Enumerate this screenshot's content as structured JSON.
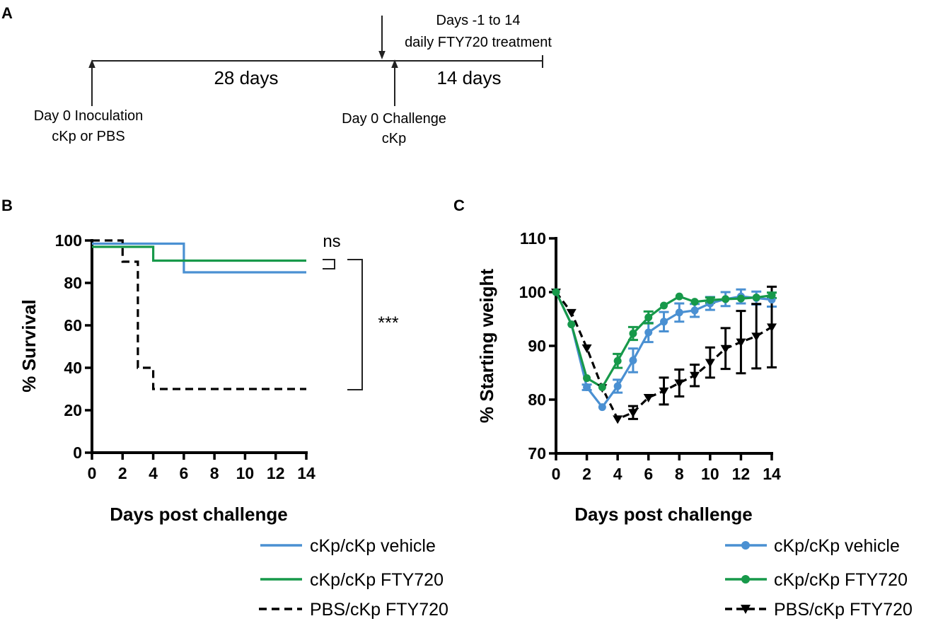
{
  "panel_labels": {
    "a": "A",
    "b": "B",
    "c": "C"
  },
  "timeline": {
    "label_28": "28 days",
    "label_14": "14 days",
    "treat_line1": "Days -1 to 14",
    "treat_line2": "daily FTY720 treatment",
    "inoc_line1": "Day 0 Inoculation",
    "inoc_line2": "cKp or PBS",
    "chal_line1": "Day 0 Challenge",
    "chal_line2": "cKp"
  },
  "colors": {
    "vehicle": "#4a90d2",
    "fty": "#17994a",
    "pbs": "#000000"
  },
  "chart_data": [
    {
      "type": "line",
      "subtype": "survival-step",
      "xlabel": "Days post challenge",
      "ylabel": "% Survival",
      "xlim": [
        0,
        14
      ],
      "ylim": [
        0,
        100
      ],
      "xticks": [
        0,
        2,
        4,
        6,
        8,
        10,
        12,
        14
      ],
      "yticks": [
        0,
        20,
        40,
        60,
        80,
        100
      ],
      "series": [
        {
          "name": "cKp/cKp vehicle",
          "color": "#4a90d2",
          "dash": false,
          "steps": [
            [
              0,
              98.5
            ],
            [
              6,
              98.5
            ],
            [
              6,
              85
            ],
            [
              14,
              85
            ]
          ]
        },
        {
          "name": "cKp/cKp FTY720",
          "color": "#17994a",
          "dash": false,
          "steps": [
            [
              0,
              97
            ],
            [
              4,
              97
            ],
            [
              4,
              90.5
            ],
            [
              14,
              90.5
            ]
          ]
        },
        {
          "name": "PBS/cKp FTY720",
          "color": "#000000",
          "dash": true,
          "steps": [
            [
              0,
              100
            ],
            [
              2,
              100
            ],
            [
              2,
              90
            ],
            [
              3,
              90
            ],
            [
              3,
              40
            ],
            [
              4,
              40
            ],
            [
              4,
              30
            ],
            [
              14,
              30
            ]
          ]
        }
      ],
      "annotations": {
        "ns": "ns",
        "stars": "***"
      }
    },
    {
      "type": "line",
      "xlabel": "Days post challenge",
      "ylabel": "% Starting weight",
      "xlim": [
        0,
        14
      ],
      "ylim": [
        70,
        110
      ],
      "xticks": [
        0,
        2,
        4,
        6,
        8,
        10,
        12,
        14
      ],
      "yticks": [
        70,
        80,
        90,
        100,
        110
      ],
      "series": [
        {
          "name": "cKp/cKp vehicle",
          "color": "#4a90d2",
          "marker": "circle",
          "x": [
            0,
            1,
            2,
            3,
            4,
            5,
            6,
            7,
            8,
            9,
            10,
            11,
            12,
            13,
            14
          ],
          "y": [
            100,
            94,
            82.3,
            78.6,
            82.5,
            87.3,
            92.5,
            94.5,
            96.2,
            96.6,
            97.9,
            98.7,
            99.2,
            98.9,
            98.6
          ],
          "err": [
            0,
            0,
            0.5,
            0,
            1.2,
            2.2,
            1.8,
            1.8,
            1.7,
            1.2,
            1.2,
            1.3,
            1.3,
            1.2,
            1.3
          ]
        },
        {
          "name": "cKp/cKp FTY720",
          "color": "#17994a",
          "marker": "circle",
          "x": [
            0,
            1,
            2,
            3,
            4,
            5,
            6,
            7,
            8,
            9,
            10,
            11,
            12,
            13,
            14
          ],
          "y": [
            100,
            94,
            84,
            82.3,
            87.2,
            92.3,
            95.3,
            97.5,
            99.2,
            98.2,
            98.5,
            98.7,
            98.8,
            99,
            99.4
          ],
          "err": [
            0,
            0,
            0,
            0,
            1.3,
            1.2,
            1.1,
            0,
            0,
            0,
            0.5,
            0,
            0,
            0,
            0.5
          ]
        },
        {
          "name": "PBS/cKp FTY720",
          "color": "#000000",
          "marker": "triangle-down",
          "dash": true,
          "x": [
            0,
            1,
            2,
            3,
            4,
            5,
            6,
            7,
            8,
            9,
            10,
            11,
            12,
            13,
            14
          ],
          "y": [
            100,
            96.2,
            89.6,
            82.2,
            76.4,
            77.6,
            80.4,
            81.6,
            83.1,
            84.5,
            86.9,
            89.5,
            90.7,
            91.8,
            93.5
          ],
          "err": [
            0,
            0,
            0,
            0,
            0,
            1.2,
            0,
            2.5,
            2.5,
            2,
            2.8,
            3.8,
            5.8,
            6,
            7.5
          ]
        }
      ]
    }
  ]
}
